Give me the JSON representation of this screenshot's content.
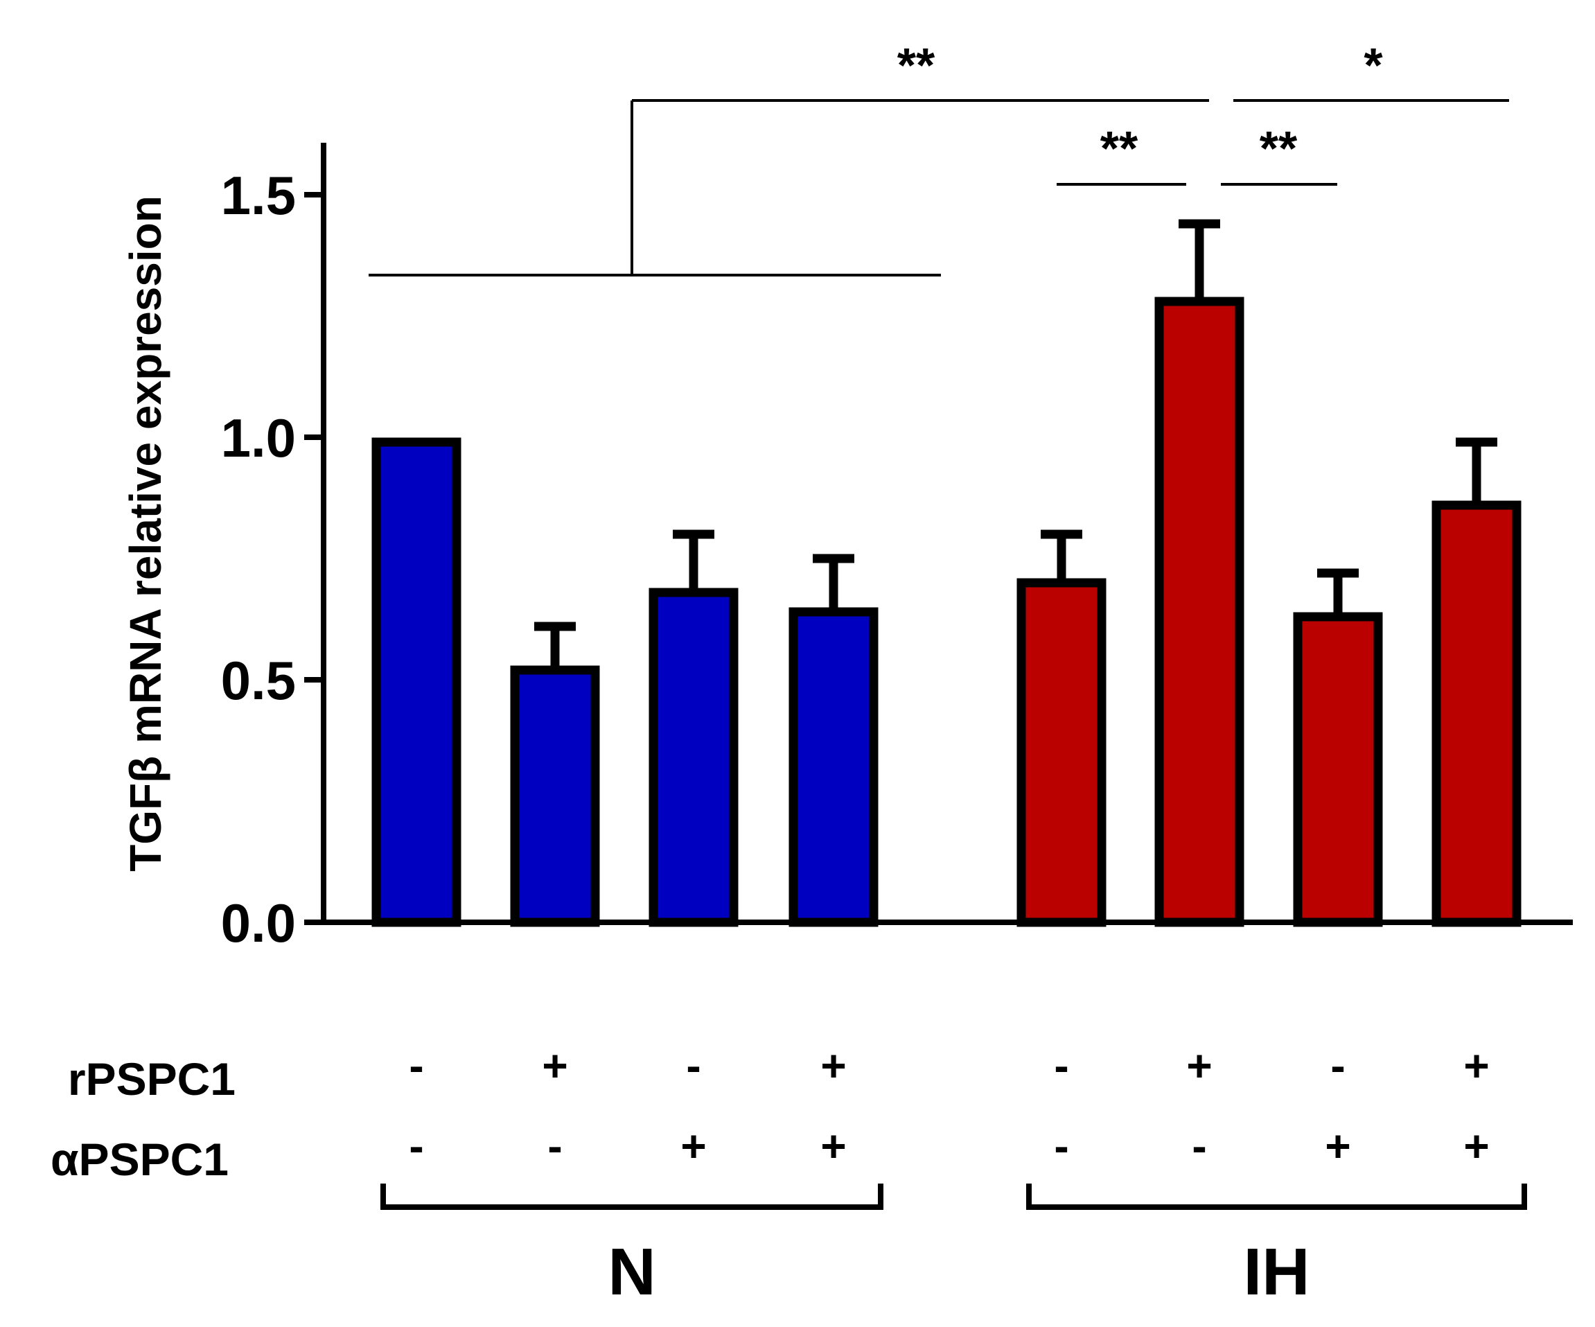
{
  "chart_data": {
    "type": "bar",
    "title": "",
    "xlabel": "",
    "ylabel": "TGFβ mRNA relative expression",
    "ylim": [
      0,
      1.6
    ],
    "yticks": [
      0.0,
      0.5,
      1.0,
      1.5
    ],
    "ytick_labels": [
      "0.0",
      "0.5",
      "1.0",
      "1.5"
    ],
    "condition_rows": [
      {
        "label": "rPSPC1",
        "signs": [
          "-",
          "+",
          "-",
          "+",
          "-",
          "+",
          "-",
          "+"
        ]
      },
      {
        "label": "αPSPC1",
        "signs": [
          "-",
          "-",
          "+",
          "+",
          "-",
          "-",
          "+",
          "+"
        ]
      }
    ],
    "groups": [
      {
        "name": "N",
        "color": "#0000c0",
        "bars": [
          {
            "value": 0.99,
            "error": 0.0
          },
          {
            "value": 0.52,
            "error": 0.09
          },
          {
            "value": 0.68,
            "error": 0.12
          },
          {
            "value": 0.64,
            "error": 0.11
          }
        ]
      },
      {
        "name": "IH",
        "color": "#bb0000",
        "bars": [
          {
            "value": 0.7,
            "error": 0.1
          },
          {
            "value": 1.28,
            "error": 0.16
          },
          {
            "value": 0.63,
            "error": 0.09
          },
          {
            "value": 0.86,
            "error": 0.13
          }
        ]
      }
    ],
    "significance": [
      {
        "label": "**",
        "comparison": "N (all) vs IH rPSPC1+ αPSPC1-"
      },
      {
        "label": "**",
        "comparison": "IH bar 1 vs IH bar 2"
      },
      {
        "label": "**",
        "comparison": "IH bar 2 vs IH bar 3"
      },
      {
        "label": "*",
        "comparison": "IH bar 2 vs IH bar 4"
      }
    ]
  }
}
